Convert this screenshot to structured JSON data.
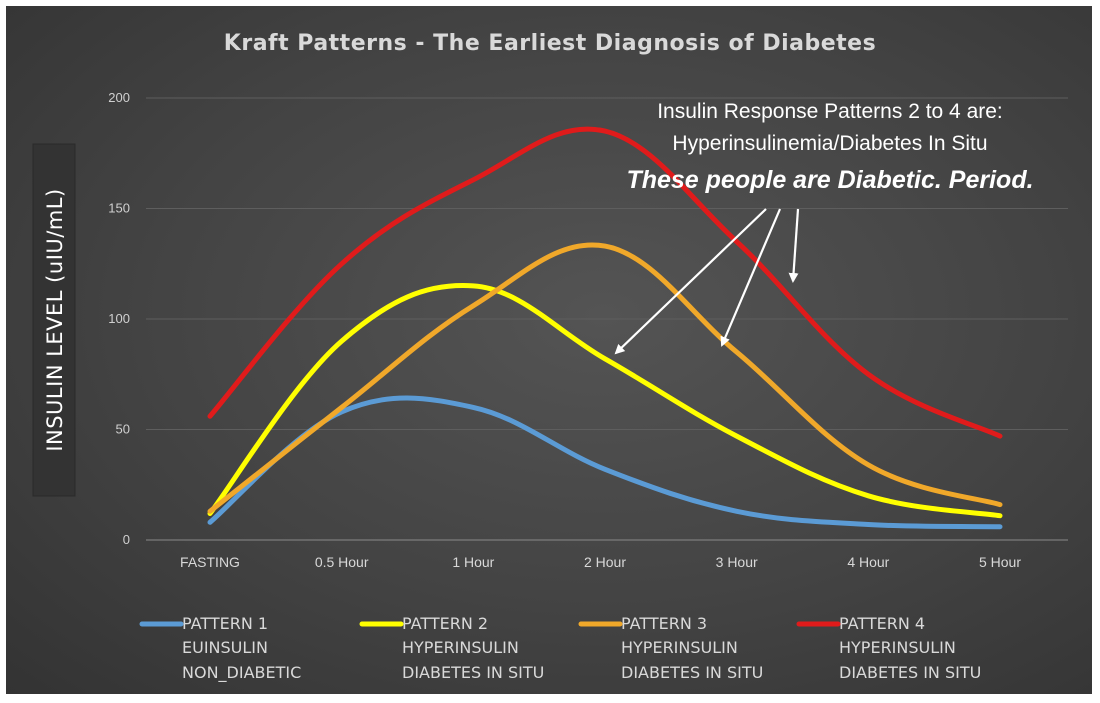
{
  "chart_data": {
    "type": "line",
    "title": "Kraft Patterns - The Earliest Diagnosis of Diabetes",
    "ylabel": "INSULIN LEVEL (uIU/mL)",
    "xlabel": "",
    "categories": [
      "FASTING",
      "0.5 Hour",
      "1 Hour",
      "2 Hour",
      "3 Hour",
      "4 Hour",
      "5 Hour"
    ],
    "ylim": [
      0,
      200
    ],
    "yticks": [
      0,
      50,
      100,
      150,
      200
    ],
    "grid": true,
    "legend_position": "bottom",
    "series": [
      {
        "name": "PATTERN 1",
        "line2": "EUINSULIN",
        "line3": "NON_DIABETIC",
        "color": "#5b9bd5",
        "values": [
          8,
          58,
          60,
          32,
          13,
          7,
          6
        ]
      },
      {
        "name": "PATTERN 2",
        "line2": "HYPERINSULIN",
        "line3": "DIABETES IN SITU",
        "color": "#ffff00",
        "values": [
          12,
          90,
          115,
          82,
          47,
          20,
          11
        ]
      },
      {
        "name": "PATTERN 3",
        "line2": "HYPERINSULIN",
        "line3": "DIABETES IN SITU",
        "color": "#f0a82a",
        "values": [
          13,
          60,
          106,
          133,
          85,
          34,
          16
        ]
      },
      {
        "name": "PATTERN 4",
        "line2": "HYPERINSULIN",
        "line3": "DIABETES IN SITU",
        "color": "#e01b1b",
        "values": [
          56,
          125,
          163,
          185,
          135,
          75,
          47
        ]
      }
    ],
    "annotation": {
      "line1": "Insulin Response Patterns 2 to 4 are:",
      "line2": "Hyperinsulinemia/Diabetes In Situ",
      "line3": "These people are Diabetic. Period."
    }
  }
}
